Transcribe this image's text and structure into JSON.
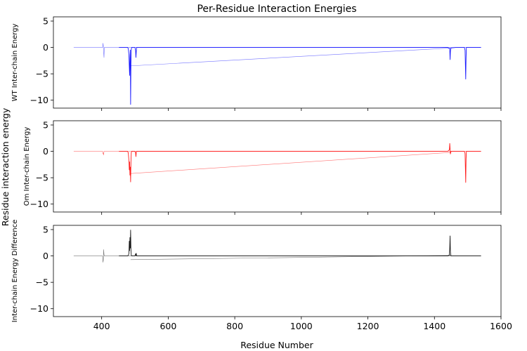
{
  "figure": {
    "title": "Per-Residue Interaction Energies",
    "xlabel": "Residue Number",
    "ylabel": "Residue interaction energy"
  },
  "chart_data": [
    {
      "type": "line",
      "ylabel": "WT Inter-chain Energy",
      "color": "#0000ff",
      "xlim": [
        255,
        1600
      ],
      "ylim": [
        -11.5,
        5.8
      ],
      "xticks": [
        400,
        600,
        800,
        1000,
        1200,
        1400,
        1600
      ],
      "yticks": [
        5,
        0,
        -5,
        -10
      ],
      "grid": false,
      "series": [
        {
          "points": [
            [
              316,
              0
            ],
            [
              403,
              0
            ],
            [
              404,
              0.8
            ],
            [
              405,
              0.3
            ],
            [
              406,
              -1.0
            ],
            [
              407,
              -1.9
            ],
            [
              408,
              0
            ],
            [
              1540,
              0
            ]
          ]
        },
        {
          "points": [
            [
              452,
              0
            ],
            [
              478,
              0
            ],
            [
              480,
              -0.2
            ],
            [
              482,
              -1.5
            ],
            [
              483,
              -3.5
            ],
            [
              484,
              -5.3
            ],
            [
              485,
              -2.0
            ],
            [
              486,
              -0.5
            ],
            [
              487,
              -10.8
            ],
            [
              488,
              -3.0
            ],
            [
              489,
              -0.5
            ],
            [
              490,
              0
            ],
            [
              500,
              0
            ],
            [
              502,
              -0.6
            ],
            [
              503,
              -1.9
            ],
            [
              504,
              -0.8
            ],
            [
              505,
              0
            ],
            [
              1440,
              0
            ],
            [
              1445,
              -0.2
            ],
            [
              1446,
              -0.3
            ],
            [
              1447,
              -2.3
            ],
            [
              1448,
              -0.8
            ],
            [
              1449,
              -0.2
            ],
            [
              1450,
              -0.1
            ],
            [
              1465,
              0
            ],
            [
              1490,
              0
            ],
            [
              1492,
              -0.5
            ],
            [
              1494,
              -6.0
            ],
            [
              1495,
              -2.0
            ],
            [
              1496,
              0
            ],
            [
              1540,
              0
            ]
          ]
        },
        {
          "points": [
            [
              487,
              -3.5
            ],
            [
              1450,
              -0.1
            ]
          ]
        }
      ]
    },
    {
      "type": "line",
      "ylabel": "Om Inter-chain Energy",
      "color": "#ff0000",
      "xlim": [
        255,
        1600
      ],
      "ylim": [
        -11.5,
        5.8
      ],
      "xticks": [
        400,
        600,
        800,
        1000,
        1200,
        1400,
        1600
      ],
      "yticks": [
        5,
        0,
        -5,
        -10
      ],
      "grid": false,
      "series": [
        {
          "points": [
            [
              316,
              0
            ],
            [
              403,
              0
            ],
            [
              404,
              -0.5
            ],
            [
              405,
              -0.3
            ],
            [
              406,
              -0.7
            ],
            [
              407,
              0
            ],
            [
              1540,
              0
            ]
          ]
        },
        {
          "points": [
            [
              452,
              0
            ],
            [
              478,
              0
            ],
            [
              480,
              -0.3
            ],
            [
              482,
              -1.8
            ],
            [
              483,
              -3.5
            ],
            [
              484,
              -2.0
            ],
            [
              485,
              -4.5
            ],
            [
              486,
              -3.0
            ],
            [
              487,
              -5.8
            ],
            [
              488,
              -2.0
            ],
            [
              489,
              -0.3
            ],
            [
              490,
              0
            ],
            [
              500,
              0
            ],
            [
              502,
              -0.3
            ],
            [
              503,
              -1.0
            ],
            [
              504,
              -0.2
            ],
            [
              505,
              0
            ],
            [
              1440,
              0
            ],
            [
              1445,
              0.3
            ],
            [
              1446,
              1.5
            ],
            [
              1447,
              0.5
            ],
            [
              1448,
              -0.5
            ],
            [
              1449,
              -0.2
            ],
            [
              1450,
              0
            ],
            [
              1465,
              0
            ],
            [
              1490,
              0
            ],
            [
              1492,
              -0.4
            ],
            [
              1494,
              -5.9
            ],
            [
              1495,
              -1.5
            ],
            [
              1496,
              0
            ],
            [
              1540,
              0
            ]
          ]
        },
        {
          "points": [
            [
              487,
              -4.2
            ],
            [
              1450,
              -0.2
            ]
          ]
        }
      ]
    },
    {
      "type": "line",
      "ylabel": "Inter-chain Energy Difference",
      "color": "#000000",
      "xlim": [
        255,
        1600
      ],
      "ylim": [
        -11.5,
        5.8
      ],
      "xticks": [
        400,
        600,
        800,
        1000,
        1200,
        1400,
        1600
      ],
      "yticks": [
        5,
        0,
        -5,
        -10
      ],
      "grid": false,
      "series": [
        {
          "points": [
            [
              316,
              0
            ],
            [
              403,
              0
            ],
            [
              404,
              -1.2
            ],
            [
              405,
              -0.8
            ],
            [
              406,
              1.2
            ],
            [
              407,
              0.3
            ],
            [
              408,
              0
            ],
            [
              1540,
              0
            ]
          ]
        },
        {
          "points": [
            [
              452,
              0
            ],
            [
              478,
              0
            ],
            [
              480,
              0.1
            ],
            [
              482,
              0.5
            ],
            [
              483,
              2.8
            ],
            [
              484,
              1.0
            ],
            [
              485,
              3.5
            ],
            [
              486,
              1.5
            ],
            [
              487,
              4.9
            ],
            [
              488,
              1.2
            ],
            [
              489,
              0.2
            ],
            [
              490,
              0
            ],
            [
              500,
              0
            ],
            [
              502,
              0.4
            ],
            [
              503,
              0.1
            ],
            [
              504,
              0.5
            ],
            [
              505,
              0
            ],
            [
              1440,
              0
            ],
            [
              1445,
              0.2
            ],
            [
              1446,
              1.5
            ],
            [
              1447,
              3.8
            ],
            [
              1448,
              0.8
            ],
            [
              1449,
              0.2
            ],
            [
              1450,
              0
            ],
            [
              1465,
              0
            ],
            [
              1490,
              0
            ],
            [
              1540,
              0
            ]
          ]
        },
        {
          "points": [
            [
              487,
              -0.7
            ],
            [
              1450,
              0.1
            ]
          ]
        }
      ]
    }
  ]
}
